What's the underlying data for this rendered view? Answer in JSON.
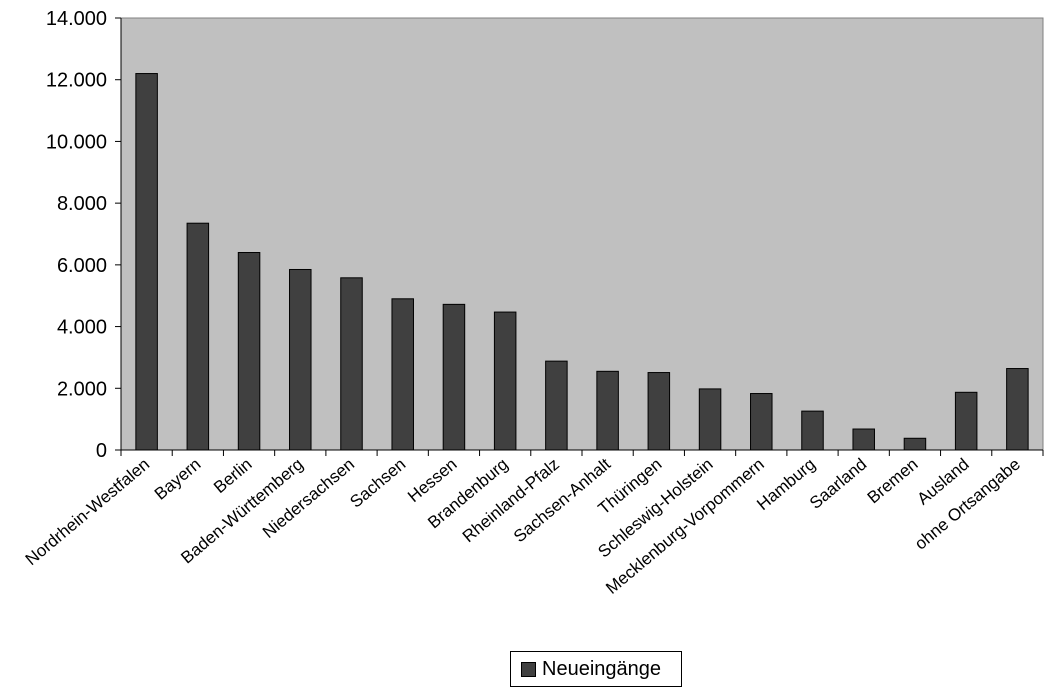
{
  "chart_data": {
    "type": "bar",
    "categories": [
      "Nordrhein-Westfalen",
      "Bayern",
      "Berlin",
      "Baden-Württemberg",
      "Niedersachsen",
      "Sachsen",
      "Hessen",
      "Brandenburg",
      "Rheinland-Pfalz",
      "Sachsen-Anhalt",
      "Thüringen",
      "Schleswig-Holstein",
      "Mecklenburg-Vorpommern",
      "Hamburg",
      "Saarland",
      "Bremen",
      "Ausland",
      "ohne Ortsangabe"
    ],
    "series": [
      {
        "name": "Neueingänge",
        "values": [
          12200,
          7350,
          6400,
          5850,
          5580,
          4900,
          4720,
          4470,
          2880,
          2550,
          2510,
          1980,
          1830,
          1260,
          680,
          380,
          1870,
          2640
        ]
      }
    ],
    "ylim": [
      0,
      14000
    ],
    "yticks": [
      0,
      2000,
      4000,
      6000,
      8000,
      10000,
      12000,
      14000
    ],
    "ytick_labels": [
      "0",
      "2.000",
      "4.000",
      "6.000",
      "8.000",
      "10.000",
      "12.000",
      "14.000"
    ],
    "grid": false,
    "legend_position": "bottom",
    "colors": {
      "plot_background": "#c0c0c0",
      "bar_fill": "#404040",
      "bar_stroke": "#000000"
    }
  }
}
